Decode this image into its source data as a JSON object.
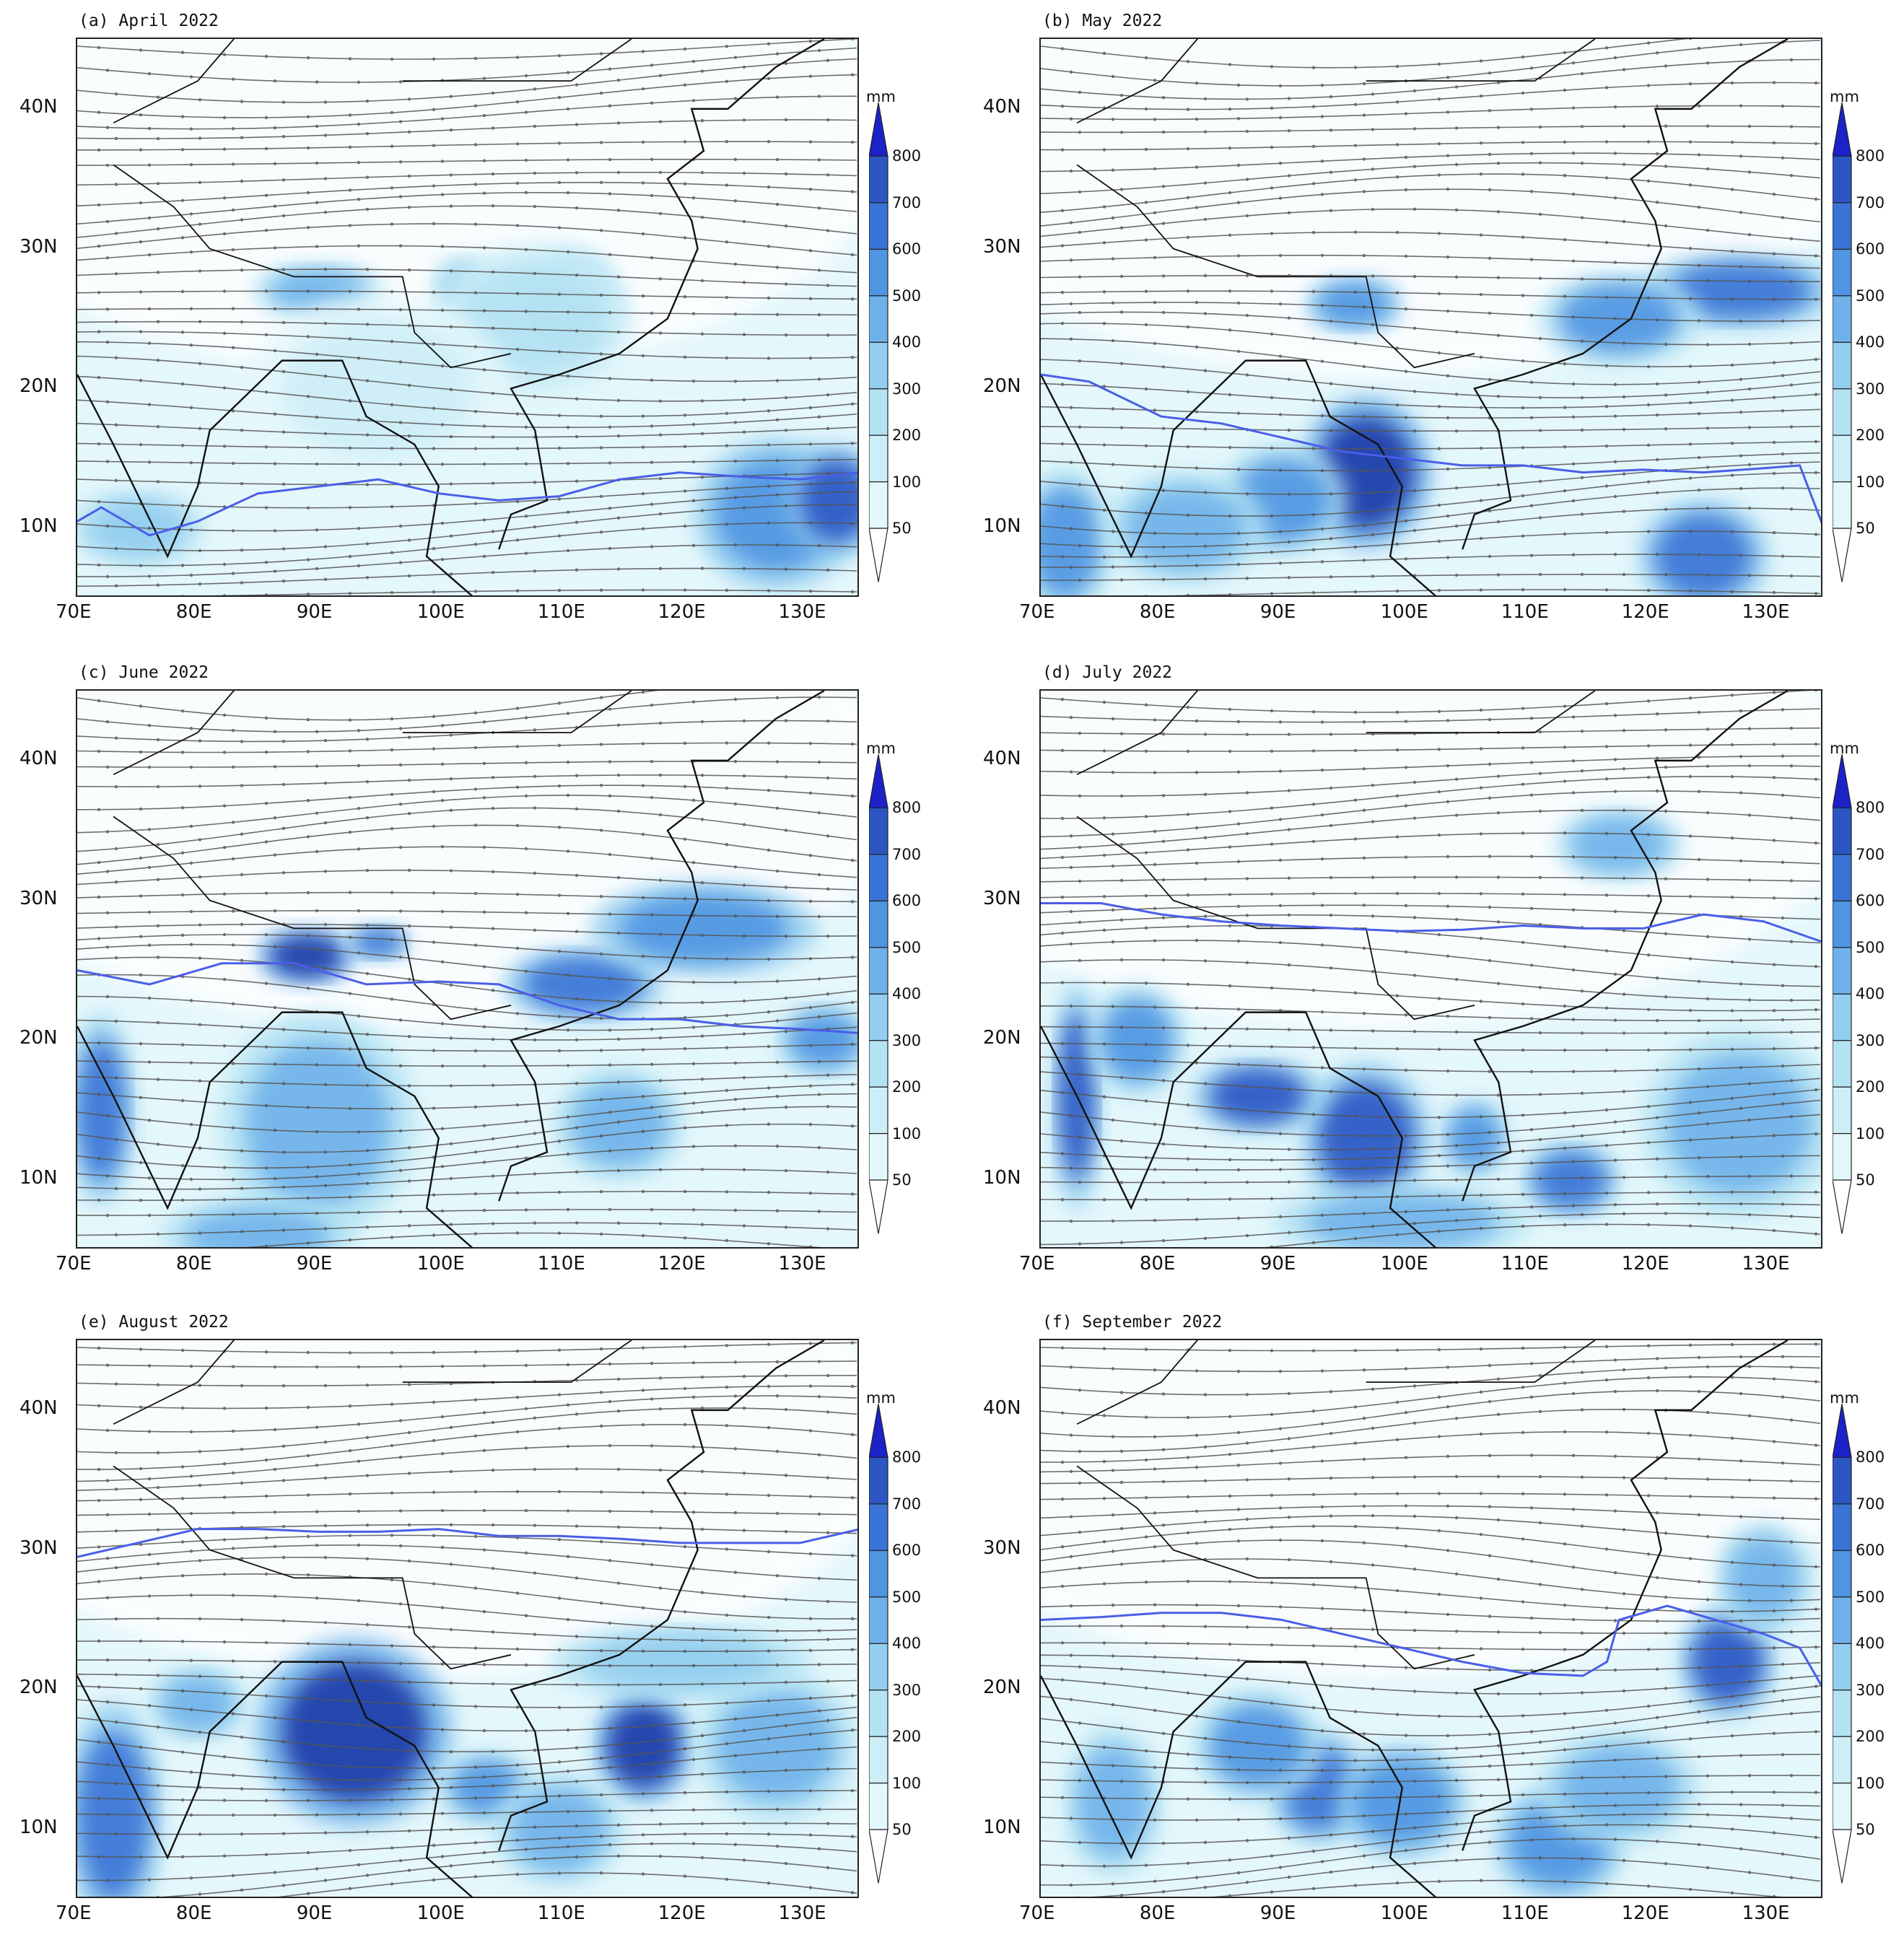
{
  "colors": {
    "bins": [
      "#ffffff",
      "#e4f7fb",
      "#cdeef7",
      "#b3e2f3",
      "#93cdef",
      "#6fb2ea",
      "#4f95e2",
      "#3a74d6",
      "#2b56c4",
      "#1f3ba8",
      "#1c22c8"
    ],
    "streamline": "#555555",
    "ridge_line": "#4a5ee8"
  },
  "colorbar": {
    "unit": "mm",
    "levels": [
      "50",
      "100",
      "200",
      "300",
      "400",
      "500",
      "600",
      "700",
      "800"
    ]
  },
  "axes": {
    "lon_labels": [
      "70E",
      "80E",
      "90E",
      "100E",
      "110E",
      "120E",
      "130E"
    ],
    "lon_values": [
      70,
      80,
      90,
      100,
      110,
      120,
      130
    ],
    "lat_labels": [
      "10N",
      "20N",
      "30N",
      "40N"
    ],
    "lat_values": [
      10,
      20,
      30,
      40
    ],
    "lon_range": [
      70,
      135
    ],
    "lat_range": [
      5,
      45
    ]
  },
  "panels": [
    {
      "title": "(a)  April  2022",
      "ridge": [
        [
          70,
          10.5
        ],
        [
          72,
          11.5
        ],
        [
          76,
          9.5
        ],
        [
          80,
          10.5
        ],
        [
          85,
          12.5
        ],
        [
          90,
          13
        ],
        [
          95,
          13.5
        ],
        [
          100,
          12.5
        ],
        [
          105,
          12
        ],
        [
          110,
          12.3
        ],
        [
          115,
          13.5
        ],
        [
          120,
          14
        ],
        [
          125,
          13.7
        ],
        [
          130,
          13.5
        ],
        [
          135,
          14
        ]
      ],
      "blobs": [
        [
          90,
          27,
          4,
          1.5,
          300
        ],
        [
          102,
          27,
          2,
          2,
          200
        ],
        [
          111,
          26,
          3,
          3,
          250
        ],
        [
          128,
          11,
          5,
          4,
          450
        ],
        [
          75,
          10,
          4,
          2,
          250
        ],
        [
          133,
          12,
          3,
          3,
          600
        ],
        [
          108,
          25,
          6,
          4,
          120
        ],
        [
          95,
          20,
          8,
          5,
          80
        ]
      ]
    },
    {
      "title": "(b)  May  2022",
      "ridge": [
        [
          70,
          21
        ],
        [
          74,
          20.5
        ],
        [
          80,
          18
        ],
        [
          85,
          17.5
        ],
        [
          90,
          16.5
        ],
        [
          95,
          15.5
        ],
        [
          100,
          15
        ],
        [
          105,
          14.5
        ],
        [
          110,
          14.5
        ],
        [
          115,
          14
        ],
        [
          120,
          14.2
        ],
        [
          125,
          14
        ],
        [
          130,
          14.3
        ],
        [
          133,
          14.5
        ],
        [
          135,
          10
        ]
      ],
      "blobs": [
        [
          97,
          14,
          4,
          4,
          700
        ],
        [
          90,
          12,
          4,
          3,
          400
        ],
        [
          72,
          9,
          3,
          4,
          400
        ],
        [
          128,
          27,
          6,
          2,
          550
        ],
        [
          118,
          25,
          5,
          2.5,
          400
        ],
        [
          96,
          26,
          3,
          1.5,
          450
        ],
        [
          125,
          8,
          4,
          3,
          500
        ],
        [
          82,
          10,
          5,
          3,
          300
        ]
      ]
    },
    {
      "title": "(c)  June  2022",
      "ridge": [
        [
          70,
          25
        ],
        [
          76,
          24
        ],
        [
          82,
          25.5
        ],
        [
          88,
          25.5
        ],
        [
          94,
          24
        ],
        [
          100,
          24.2
        ],
        [
          105,
          24
        ],
        [
          110,
          22.5
        ],
        [
          115,
          21.5
        ],
        [
          120,
          21.5
        ],
        [
          125,
          21
        ],
        [
          130,
          20.8
        ],
        [
          135,
          20.5
        ]
      ],
      "blobs": [
        [
          89,
          26,
          3,
          1.5,
          700
        ],
        [
          95,
          27,
          2,
          1,
          500
        ],
        [
          112,
          24,
          5,
          2,
          500
        ],
        [
          122,
          28,
          7,
          2.5,
          450
        ],
        [
          72,
          15,
          2,
          5,
          500
        ],
        [
          90,
          14,
          6,
          6,
          350
        ],
        [
          115,
          14,
          4,
          3,
          350
        ],
        [
          132,
          20,
          3,
          2,
          400
        ],
        [
          85,
          6,
          6,
          2,
          350
        ]
      ]
    },
    {
      "title": "(d)  July  2022",
      "ridge": [
        [
          70,
          29.8
        ],
        [
          75,
          29.8
        ],
        [
          80,
          29
        ],
        [
          85,
          28.5
        ],
        [
          90,
          28.2
        ],
        [
          95,
          28
        ],
        [
          100,
          27.8
        ],
        [
          105,
          27.9
        ],
        [
          110,
          28.2
        ],
        [
          115,
          28
        ],
        [
          120,
          28
        ],
        [
          125,
          29
        ],
        [
          130,
          28.5
        ],
        [
          135,
          27
        ]
      ],
      "blobs": [
        [
          73,
          16,
          1.5,
          6,
          600
        ],
        [
          97,
          13,
          4,
          4,
          650
        ],
        [
          88,
          16,
          4,
          2,
          600
        ],
        [
          78,
          20,
          3,
          3,
          400
        ],
        [
          106,
          13,
          2,
          2,
          450
        ],
        [
          114,
          10,
          3,
          2,
          550
        ],
        [
          118,
          34,
          4,
          2,
          300
        ],
        [
          128,
          14,
          6,
          5,
          350
        ],
        [
          100,
          7,
          8,
          2,
          350
        ]
      ]
    },
    {
      "title": "(e)  August  2022",
      "ridge": [
        [
          70,
          29.5
        ],
        [
          75,
          30.5
        ],
        [
          80,
          31.5
        ],
        [
          85,
          31.5
        ],
        [
          90,
          31.3
        ],
        [
          95,
          31.3
        ],
        [
          100,
          31.5
        ],
        [
          105,
          31
        ],
        [
          110,
          31
        ],
        [
          115,
          30.8
        ],
        [
          120,
          30.5
        ],
        [
          125,
          30.5
        ],
        [
          130,
          30.5
        ],
        [
          135,
          31.5
        ]
      ],
      "blobs": [
        [
          93,
          17,
          6,
          5,
          750
        ],
        [
          117,
          16,
          3,
          3,
          700
        ],
        [
          73,
          11,
          3,
          6,
          500
        ],
        [
          104,
          13,
          3,
          2,
          400
        ],
        [
          80,
          19,
          3,
          2,
          350
        ],
        [
          128,
          16,
          5,
          4,
          350
        ],
        [
          110,
          10,
          4,
          3,
          300
        ],
        [
          120,
          22,
          8,
          2,
          250
        ]
      ]
    },
    {
      "title": "(f)  September  2022",
      "ridge": [
        [
          70,
          25
        ],
        [
          75,
          25.2
        ],
        [
          80,
          25.5
        ],
        [
          85,
          25.5
        ],
        [
          90,
          25
        ],
        [
          95,
          24
        ],
        [
          100,
          23
        ],
        [
          105,
          22
        ],
        [
          110,
          21.2
        ],
        [
          115,
          21
        ],
        [
          117,
          22
        ],
        [
          118,
          25
        ],
        [
          122,
          26
        ],
        [
          126,
          25
        ],
        [
          130,
          24
        ],
        [
          133,
          23
        ],
        [
          135,
          20
        ]
      ],
      "blobs": [
        [
          127,
          22,
          3,
          3,
          600
        ],
        [
          93,
          13,
          3,
          3,
          500
        ],
        [
          100,
          12,
          4,
          3,
          450
        ],
        [
          113,
          9,
          4,
          3,
          450
        ],
        [
          88,
          16,
          4,
          3,
          400
        ],
        [
          130,
          28,
          3,
          3,
          350
        ],
        [
          118,
          13,
          5,
          3,
          350
        ],
        [
          76,
          12,
          3,
          4,
          300
        ]
      ]
    }
  ]
}
